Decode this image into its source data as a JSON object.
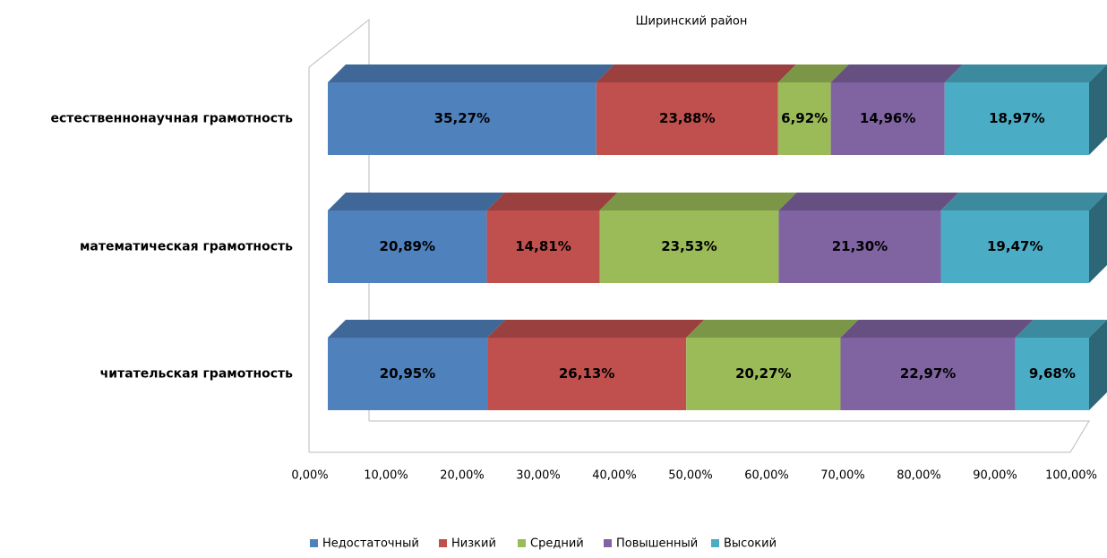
{
  "chart_data": {
    "type": "bar3d_stacked_horizontal",
    "title": "Ширинский район",
    "categories": [
      "естественнонаучная грамотность",
      "математическая грамотность",
      "читательская грамотность"
    ],
    "series": [
      {
        "name": "Недостаточный",
        "color": "#4f81bd",
        "values": [
          35.27,
          20.89,
          20.95
        ],
        "value_labels": [
          "35,27%",
          "20,89%",
          "20,95%"
        ]
      },
      {
        "name": "Низкий",
        "color": "#c0504d",
        "values": [
          23.88,
          14.81,
          26.13
        ],
        "value_labels": [
          "23,88%",
          "14,81%",
          "26,13%"
        ]
      },
      {
        "name": "Средний",
        "color": "#9bbb59",
        "values": [
          6.92,
          23.53,
          20.27
        ],
        "value_labels": [
          "6,92%",
          "23,53%",
          "20,27%"
        ]
      },
      {
        "name": "Повышенный",
        "color": "#8064a2",
        "values": [
          14.96,
          21.3,
          22.97
        ],
        "value_labels": [
          "14,96%",
          "21,30%",
          "22,97%"
        ]
      },
      {
        "name": "Высокий",
        "color": "#4bacc6",
        "values": [
          18.97,
          19.47,
          9.68
        ],
        "value_labels": [
          "18,97%",
          "19,47%",
          "9,68%"
        ]
      }
    ],
    "xlim": [
      0,
      100
    ],
    "xticks": [
      {
        "value": 0,
        "label": "0,00%"
      },
      {
        "value": 10,
        "label": "10,00%"
      },
      {
        "value": 20,
        "label": "20,00%"
      },
      {
        "value": 30,
        "label": "30,00%"
      },
      {
        "value": 40,
        "label": "40,00%"
      },
      {
        "value": 50,
        "label": "50,00%"
      },
      {
        "value": 60,
        "label": "60,00%"
      },
      {
        "value": 70,
        "label": "70,00%"
      },
      {
        "value": 80,
        "label": "80,00%"
      },
      {
        "value": 90,
        "label": "90,00%"
      },
      {
        "value": 100,
        "label": "100,00%"
      }
    ],
    "legend": "bottom"
  }
}
